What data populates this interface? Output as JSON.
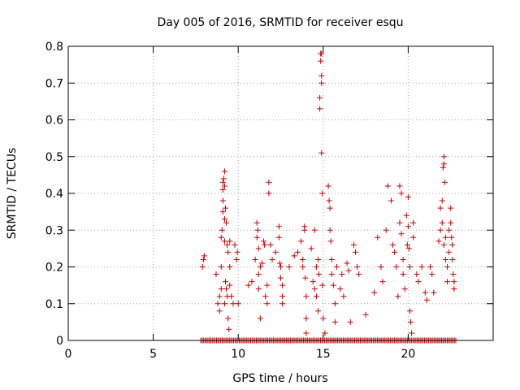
{
  "chart_data": {
    "type": "scatter",
    "title": "Day 005 of 2016, SRMTID for receiver esqu",
    "xlabel": "GPS time / hours",
    "ylabel": "SRMTID / TECUs",
    "xlim": [
      0,
      25
    ],
    "ylim": [
      0,
      0.8
    ],
    "xticks": [
      0,
      5,
      10,
      15,
      20
    ],
    "yticks": [
      0,
      0.1,
      0.2,
      0.3,
      0.4,
      0.5,
      0.6,
      0.7,
      0.8
    ],
    "grid": true,
    "marker": "+",
    "color": "#cc0000",
    "series": [
      {
        "name": "SRMTID",
        "points": [
          [
            7.9,
            0.2
          ],
          [
            7.95,
            0.22
          ],
          [
            8.0,
            0.23
          ],
          [
            8.7,
            0.18
          ],
          [
            8.8,
            0.1
          ],
          [
            8.9,
            0.08
          ],
          [
            8.9,
            0.12
          ],
          [
            9.0,
            0.14
          ],
          [
            9.0,
            0.2
          ],
          [
            9.0,
            0.28
          ],
          [
            9.05,
            0.3
          ],
          [
            9.1,
            0.35
          ],
          [
            9.1,
            0.38
          ],
          [
            9.1,
            0.41
          ],
          [
            9.1,
            0.43
          ],
          [
            9.15,
            0.44
          ],
          [
            9.2,
            0.42
          ],
          [
            9.2,
            0.46
          ],
          [
            9.2,
            0.33
          ],
          [
            9.2,
            0.27
          ],
          [
            9.2,
            0.1
          ],
          [
            9.25,
            0.36
          ],
          [
            9.25,
            0.16
          ],
          [
            9.3,
            0.32
          ],
          [
            9.3,
            0.14
          ],
          [
            9.35,
            0.26
          ],
          [
            9.35,
            0.12
          ],
          [
            9.4,
            0.24
          ],
          [
            9.4,
            0.06
          ],
          [
            9.45,
            0.03
          ],
          [
            9.5,
            0.27
          ],
          [
            9.5,
            0.15
          ],
          [
            9.5,
            0.2
          ],
          [
            9.6,
            0.12
          ],
          [
            9.7,
            0.1
          ],
          [
            9.8,
            0.26
          ],
          [
            9.9,
            0.22
          ],
          [
            9.95,
            0.24
          ],
          [
            10.0,
            0.1
          ],
          [
            10.6,
            0.15
          ],
          [
            10.8,
            0.16
          ],
          [
            11.0,
            0.22
          ],
          [
            11.1,
            0.28
          ],
          [
            11.1,
            0.32
          ],
          [
            11.15,
            0.3
          ],
          [
            11.2,
            0.25
          ],
          [
            11.2,
            0.18
          ],
          [
            11.2,
            0.14
          ],
          [
            11.3,
            0.06
          ],
          [
            11.3,
            0.2
          ],
          [
            11.4,
            0.21
          ],
          [
            11.5,
            0.27
          ],
          [
            11.55,
            0.26
          ],
          [
            11.6,
            0.12
          ],
          [
            11.7,
            0.1
          ],
          [
            11.7,
            0.15
          ],
          [
            11.8,
            0.43
          ],
          [
            11.8,
            0.4
          ],
          [
            11.9,
            0.26
          ],
          [
            12.0,
            0.22
          ],
          [
            12.2,
            0.24
          ],
          [
            12.4,
            0.31
          ],
          [
            12.4,
            0.28
          ],
          [
            12.45,
            0.21
          ],
          [
            12.5,
            0.2
          ],
          [
            12.5,
            0.17
          ],
          [
            12.6,
            0.15
          ],
          [
            12.6,
            0.1
          ],
          [
            12.6,
            0.12
          ],
          [
            13.0,
            0.2
          ],
          [
            13.3,
            0.23
          ],
          [
            13.5,
            0.24
          ],
          [
            13.7,
            0.27
          ],
          [
            13.8,
            0.22
          ],
          [
            13.8,
            0.2
          ],
          [
            13.9,
            0.3
          ],
          [
            13.9,
            0.31
          ],
          [
            13.95,
            0.17
          ],
          [
            14.0,
            0.12
          ],
          [
            14.0,
            0.06
          ],
          [
            14.0,
            0.02
          ],
          [
            14.3,
            0.25
          ],
          [
            14.4,
            0.16
          ],
          [
            14.5,
            0.3
          ],
          [
            14.5,
            0.14
          ],
          [
            14.6,
            0.2
          ],
          [
            14.6,
            0.12
          ],
          [
            14.7,
            0.22
          ],
          [
            14.7,
            0.08
          ],
          [
            14.75,
            0.18
          ],
          [
            14.8,
            0.63
          ],
          [
            14.8,
            0.66
          ],
          [
            14.85,
            0.78
          ],
          [
            14.85,
            0.76
          ],
          [
            14.9,
            0.78
          ],
          [
            14.9,
            0.72
          ],
          [
            14.9,
            0.7
          ],
          [
            14.9,
            0.51
          ],
          [
            14.95,
            0.4
          ],
          [
            14.95,
            0.15
          ],
          [
            15.0,
            0.06
          ],
          [
            15.1,
            0.02
          ],
          [
            15.3,
            0.42
          ],
          [
            15.35,
            0.38
          ],
          [
            15.4,
            0.36
          ],
          [
            15.4,
            0.3
          ],
          [
            15.45,
            0.27
          ],
          [
            15.5,
            0.22
          ],
          [
            15.5,
            0.18
          ],
          [
            15.6,
            0.15
          ],
          [
            15.7,
            0.1
          ],
          [
            15.7,
            0.05
          ],
          [
            15.8,
            0.2
          ],
          [
            16.0,
            0.14
          ],
          [
            16.1,
            0.18
          ],
          [
            16.2,
            0.12
          ],
          [
            16.4,
            0.21
          ],
          [
            16.5,
            0.19
          ],
          [
            16.6,
            0.05
          ],
          [
            16.8,
            0.26
          ],
          [
            16.9,
            0.24
          ],
          [
            17.0,
            0.2
          ],
          [
            17.1,
            0.18
          ],
          [
            17.5,
            0.07
          ],
          [
            18.0,
            0.13
          ],
          [
            18.2,
            0.28
          ],
          [
            18.4,
            0.2
          ],
          [
            18.5,
            0.16
          ],
          [
            18.7,
            0.3
          ],
          [
            18.8,
            0.42
          ],
          [
            19.0,
            0.38
          ],
          [
            19.1,
            0.26
          ],
          [
            19.2,
            0.24
          ],
          [
            19.3,
            0.2
          ],
          [
            19.4,
            0.12
          ],
          [
            19.5,
            0.42
          ],
          [
            19.5,
            0.32
          ],
          [
            19.6,
            0.4
          ],
          [
            19.6,
            0.29
          ],
          [
            19.7,
            0.22
          ],
          [
            19.7,
            0.18
          ],
          [
            19.8,
            0.14
          ],
          [
            19.9,
            0.34
          ],
          [
            19.95,
            0.26
          ],
          [
            20.0,
            0.39
          ],
          [
            20.0,
            0.31
          ],
          [
            20.05,
            0.25
          ],
          [
            20.1,
            0.2
          ],
          [
            20.1,
            0.08
          ],
          [
            20.15,
            0.05
          ],
          [
            20.2,
            0.02
          ],
          [
            20.3,
            0.32
          ],
          [
            20.3,
            0.28
          ],
          [
            20.5,
            0.18
          ],
          [
            20.6,
            0.16
          ],
          [
            20.8,
            0.2
          ],
          [
            21.0,
            0.13
          ],
          [
            21.1,
            0.11
          ],
          [
            21.3,
            0.2
          ],
          [
            21.4,
            0.18
          ],
          [
            21.5,
            0.13
          ],
          [
            21.8,
            0.27
          ],
          [
            21.9,
            0.3
          ],
          [
            21.9,
            0.36
          ],
          [
            22.0,
            0.38
          ],
          [
            22.0,
            0.32
          ],
          [
            22.05,
            0.47
          ],
          [
            22.1,
            0.5
          ],
          [
            22.1,
            0.48
          ],
          [
            22.15,
            0.43
          ],
          [
            22.1,
            0.26
          ],
          [
            22.2,
            0.28
          ],
          [
            22.2,
            0.22
          ],
          [
            22.3,
            0.2
          ],
          [
            22.3,
            0.16
          ],
          [
            22.4,
            0.3
          ],
          [
            22.4,
            0.24
          ],
          [
            22.5,
            0.36
          ],
          [
            22.5,
            0.32
          ],
          [
            22.55,
            0.28
          ],
          [
            22.6,
            0.26
          ],
          [
            22.6,
            0.22
          ],
          [
            22.65,
            0.18
          ],
          [
            22.7,
            0.14
          ],
          [
            22.7,
            0.16
          ]
        ]
      },
      {
        "name": "zero-baseline",
        "x_range": [
          7.8,
          22.8
        ],
        "y": 0,
        "count": 180
      }
    ]
  }
}
